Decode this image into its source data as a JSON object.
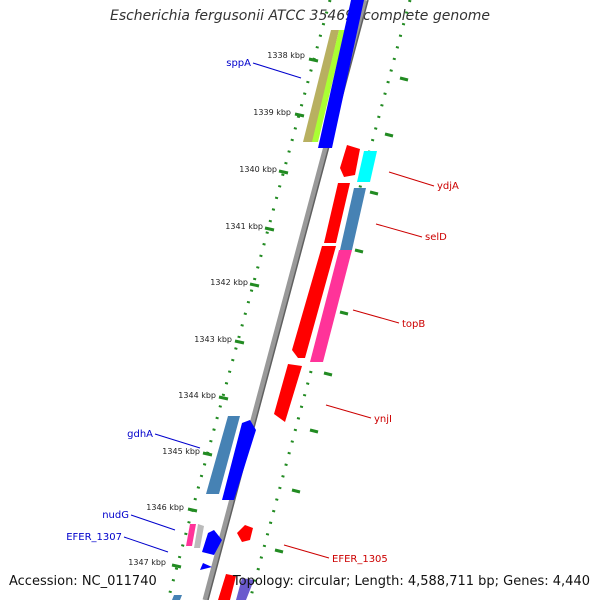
{
  "map": {
    "title": "Escherichia fergusonii ATCC 35469, complete genome",
    "accession": "Accession: NC_011740",
    "topology": "Topology: circular; Length: 4,588,711 bp; Genes: 4,440",
    "ticks": [
      "1338 kbp",
      "1339 kbp",
      "1340 kbp",
      "1341 kbp",
      "1342 kbp",
      "1343 kbp",
      "1344 kbp",
      "1345 kbp",
      "1346 kbp",
      "1347 kbp"
    ],
    "genes_left": [
      "sppA",
      "gdhA",
      "nudG",
      "EFER_1307"
    ],
    "genes_right": [
      "ydjA",
      "selD",
      "topB",
      "ynjI",
      "EFER_1305"
    ],
    "colors": {
      "label_left": "#0000cc",
      "label_right": "#cc0000",
      "forward_cds": "#0000ff",
      "reverse_cds": "#ff0000",
      "steelblue_cds": "#4682b4",
      "pink_cds": "#ff3399",
      "cyan_cds": "#00ffff",
      "olive_cds": "#b8b060",
      "lime_cds": "#aaff33",
      "backbone": "#808080",
      "dotted_ring": "#228b22"
    }
  }
}
